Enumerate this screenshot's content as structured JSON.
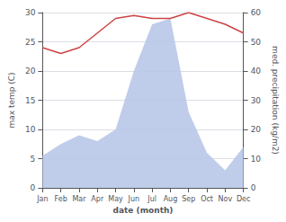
{
  "chart_data": {
    "type": "line",
    "categories": [
      "Jan",
      "Feb",
      "Mar",
      "Apr",
      "May",
      "Jun",
      "Jul",
      "Aug",
      "Sep",
      "Oct",
      "Nov",
      "Dec"
    ],
    "xlabel": "date (month)",
    "ylabel": "max temp (C)",
    "y2label": "med. precipitation (kg/m2)",
    "ylim": [
      0,
      30
    ],
    "yticks": [
      0,
      5,
      10,
      15,
      20,
      25,
      30
    ],
    "y2lim": [
      0,
      60
    ],
    "y2ticks": [
      0,
      10,
      20,
      30,
      40,
      50,
      60
    ],
    "grid": true,
    "series": [
      {
        "type": "area",
        "axis": "y2",
        "color": "#b8c8e8",
        "values": [
          11.0,
          15.0,
          18.0,
          16.0,
          20.0,
          40.0,
          56.0,
          58.0,
          26.0,
          12.0,
          6.0,
          14.0
        ]
      },
      {
        "type": "line",
        "color": "#cc4444",
        "values": [
          24.0,
          23.0,
          24.0,
          26.5,
          29.0,
          29.5,
          29.0,
          29.0,
          30.0,
          29.0,
          28.0,
          26.5
        ]
      }
    ]
  }
}
